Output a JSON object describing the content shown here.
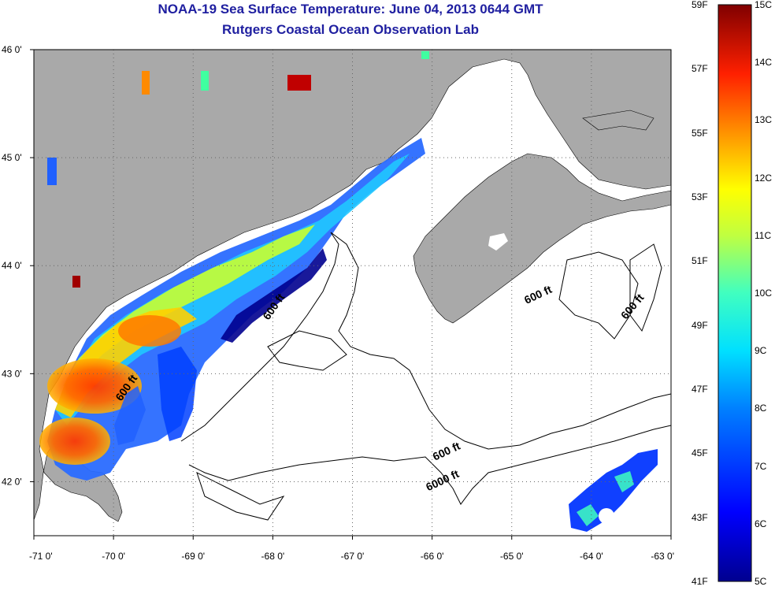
{
  "title": "NOAA-19 Sea Surface Temperature:  June 04, 2013 0644 GMT",
  "subtitle": "Rutgers Coastal Ocean Observation Lab",
  "colors": {
    "land": "#a9a9a9",
    "water": "#ffffff",
    "title": "#1f1fa0"
  },
  "map": {
    "lon_range": [
      -71.0,
      -63.0
    ],
    "lat_range": [
      41.5,
      46.0
    ],
    "lon_ticks": [
      {
        "value": -71,
        "label": "-71 0'"
      },
      {
        "value": -70,
        "label": "-70 0'"
      },
      {
        "value": -69,
        "label": "-69 0'"
      },
      {
        "value": -68,
        "label": "-68 0'"
      },
      {
        "value": -67,
        "label": "-67 0'"
      },
      {
        "value": -66,
        "label": "-66 0'"
      },
      {
        "value": -65,
        "label": "-65 0'"
      },
      {
        "value": -64,
        "label": "-64 0'"
      },
      {
        "value": -63,
        "label": "-63 0'"
      }
    ],
    "lat_ticks": [
      {
        "value": 46,
        "label": "46 0'"
      },
      {
        "value": 45,
        "label": "45 0'"
      },
      {
        "value": 44,
        "label": "44 0'"
      },
      {
        "value": 43,
        "label": "43 0'"
      },
      {
        "value": 42,
        "label": "42 0'"
      }
    ],
    "grid": "dotted",
    "contour_labels": [
      {
        "text": "600 ft",
        "lon": -67.95,
        "lat": 43.6,
        "angle": -55
      },
      {
        "text": "600 ft",
        "lon": -69.8,
        "lat": 42.85,
        "angle": -55
      },
      {
        "text": "600 ft",
        "lon": -64.65,
        "lat": 43.7,
        "angle": -25
      },
      {
        "text": "600 ft",
        "lon": -63.45,
        "lat": 43.6,
        "angle": -50
      },
      {
        "text": "600 ft",
        "lon": -65.8,
        "lat": 42.25,
        "angle": -25
      },
      {
        "text": "6000 ft",
        "lon": -65.85,
        "lat": 41.98,
        "angle": -25
      }
    ]
  },
  "colorbar": {
    "fahrenheit_labels": [
      "59F",
      "57F",
      "55F",
      "53F",
      "51F",
      "49F",
      "47F",
      "45F",
      "43F",
      "41F"
    ],
    "celsius_labels": [
      "15C",
      "14C",
      "13C",
      "12C",
      "11C",
      "10C",
      "9C",
      "8C",
      "7C",
      "6C",
      "5C"
    ],
    "range_c": [
      5,
      15
    ],
    "range_f": [
      41,
      59
    ]
  }
}
